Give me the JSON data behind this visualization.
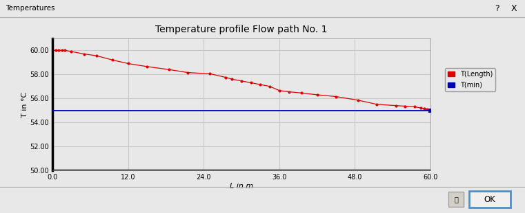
{
  "title": "Temperature profile Flow path No. 1",
  "xlabel": "L in m",
  "ylabel": "T in °C",
  "xlim": [
    0.0,
    60.0
  ],
  "ylim": [
    50.0,
    61.0
  ],
  "xticks": [
    0.0,
    12.0,
    24.0,
    36.0,
    48.0,
    60.0
  ],
  "yticks": [
    50.0,
    52.0,
    54.0,
    56.0,
    58.0,
    60.0
  ],
  "T_min": 55.0,
  "red_x": [
    0.0,
    0.5,
    1.0,
    1.5,
    2.0,
    3.0,
    5.0,
    7.0,
    9.5,
    12.0,
    15.0,
    18.5,
    21.5,
    25.0,
    27.5,
    28.5,
    30.0,
    31.5,
    33.0,
    34.5,
    36.0,
    37.5,
    39.5,
    42.0,
    45.0,
    48.5,
    51.5,
    54.5,
    56.0,
    57.5,
    58.5,
    59.0,
    59.5,
    60.0
  ],
  "red_y": [
    60.0,
    60.0,
    60.0,
    60.0,
    60.0,
    59.9,
    59.7,
    59.55,
    59.2,
    58.9,
    58.65,
    58.4,
    58.15,
    58.05,
    57.75,
    57.6,
    57.45,
    57.3,
    57.15,
    57.0,
    56.65,
    56.55,
    56.45,
    56.3,
    56.15,
    55.85,
    55.5,
    55.4,
    55.35,
    55.3,
    55.2,
    55.15,
    55.1,
    55.05
  ],
  "bg_color": "#e8e8e8",
  "plot_bg_color": "#e8e8e8",
  "grid_color": "#c8c8c8",
  "red_line_color": "#dd0000",
  "red_marker_color": "#dd0000",
  "blue_line_color": "#0000bb",
  "blue_marker_color": "#0000bb",
  "legend_T_length": "T(Length)",
  "legend_T_min": "T(min)",
  "title_fontsize": 10,
  "axis_label_fontsize": 8,
  "tick_fontsize": 7,
  "legend_fontsize": 7,
  "window_title": "Temperatures",
  "bottom_bar_color": "#d4d0c8"
}
